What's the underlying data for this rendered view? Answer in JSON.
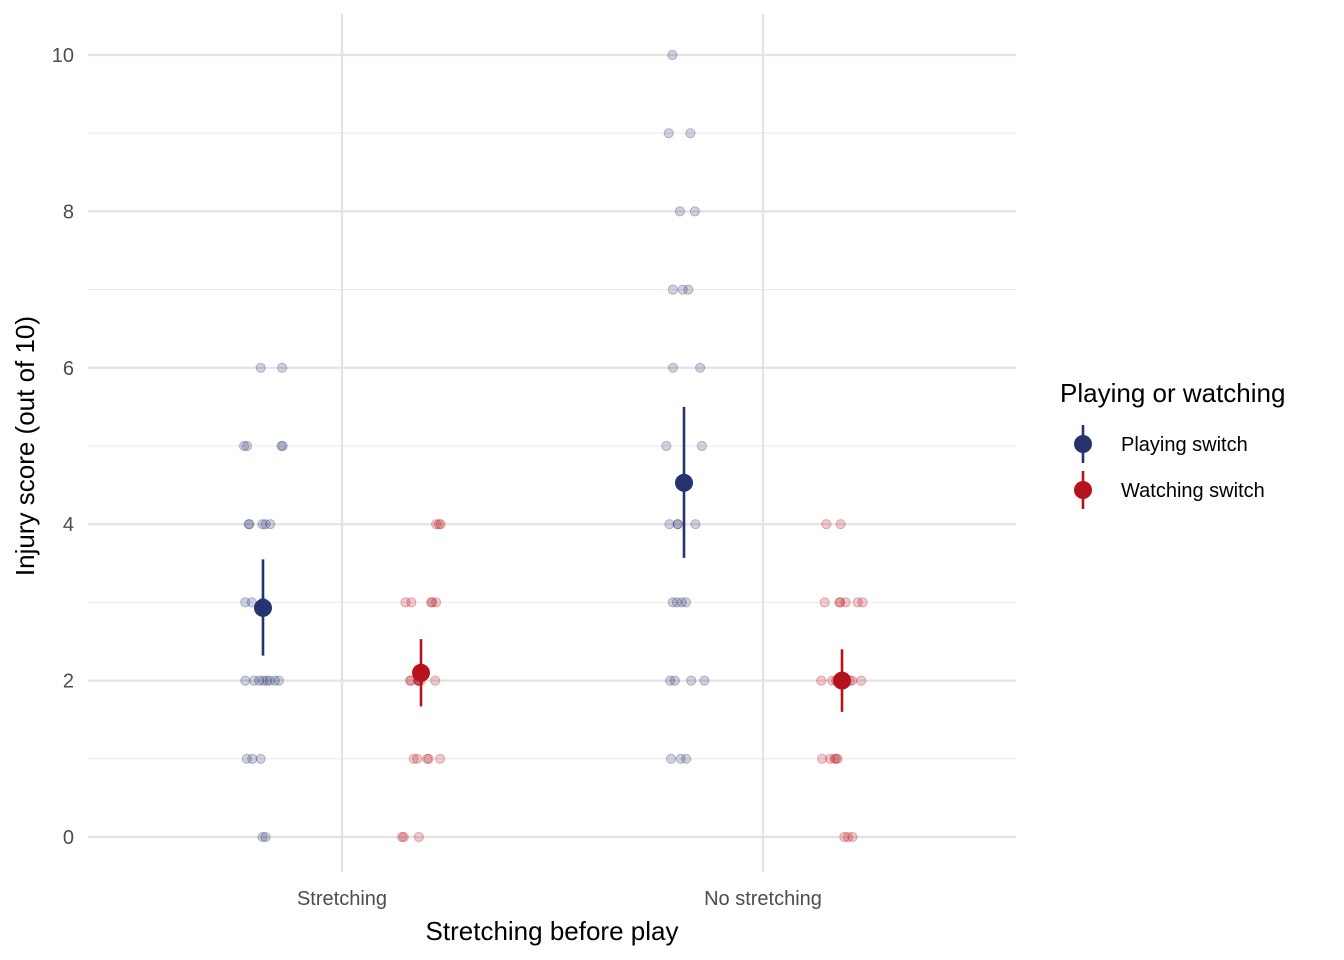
{
  "chart_data": {
    "type": "scatter",
    "xlabel": "Stretching before play",
    "ylabel": "Injury score (out of 10)",
    "categories": [
      "Stretching",
      "No stretching"
    ],
    "ylim": [
      -0.45,
      10.5
    ],
    "yticks_major": [
      0,
      2,
      4,
      6,
      8,
      10
    ],
    "yticks_minor": [
      1,
      3,
      5,
      7,
      9
    ],
    "grid": true,
    "legend": {
      "title": "Playing or watching",
      "position": "right",
      "entries": [
        "Playing switch",
        "Watching switch"
      ]
    },
    "series": [
      {
        "name": "Playing switch",
        "color": "#27336e",
        "summary": [
          {
            "category": "Stretching",
            "mean": 2.93,
            "low": 2.32,
            "high": 3.55
          },
          {
            "category": "No stretching",
            "mean": 4.53,
            "low": 3.57,
            "high": 5.5
          }
        ],
        "points": [
          {
            "category": "Stretching",
            "values": [
              0,
              0,
              1,
              1,
              1,
              2,
              2,
              2,
              2,
              2,
              2,
              2,
              2,
              3,
              3,
              3,
              4,
              4,
              4,
              4,
              4,
              5,
              5,
              5,
              5,
              6,
              6
            ]
          },
          {
            "category": "No stretching",
            "values": [
              1,
              1,
              1,
              2,
              2,
              2,
              2,
              3,
              3,
              3,
              3,
              4,
              4,
              4,
              4,
              5,
              5,
              6,
              6,
              7,
              7,
              7,
              8,
              8,
              9,
              9,
              10
            ]
          }
        ]
      },
      {
        "name": "Watching switch",
        "color": "#b5121b",
        "summary": [
          {
            "category": "Stretching",
            "mean": 2.1,
            "low": 1.67,
            "high": 2.53
          },
          {
            "category": "No stretching",
            "mean": 2.0,
            "low": 1.6,
            "high": 2.4
          }
        ],
        "points": [
          {
            "category": "Stretching",
            "values": [
              0,
              0,
              0,
              1,
              1,
              1,
              1,
              1,
              2,
              2,
              2,
              2,
              2,
              2,
              2,
              2,
              3,
              3,
              3,
              3,
              3,
              4,
              4,
              4
            ]
          },
          {
            "category": "No stretching",
            "values": [
              0,
              0,
              0,
              1,
              1,
              1,
              1,
              1,
              2,
              2,
              2,
              2,
              2,
              2,
              2,
              3,
              3,
              3,
              3,
              3,
              3,
              4,
              4
            ]
          }
        ]
      }
    ]
  }
}
